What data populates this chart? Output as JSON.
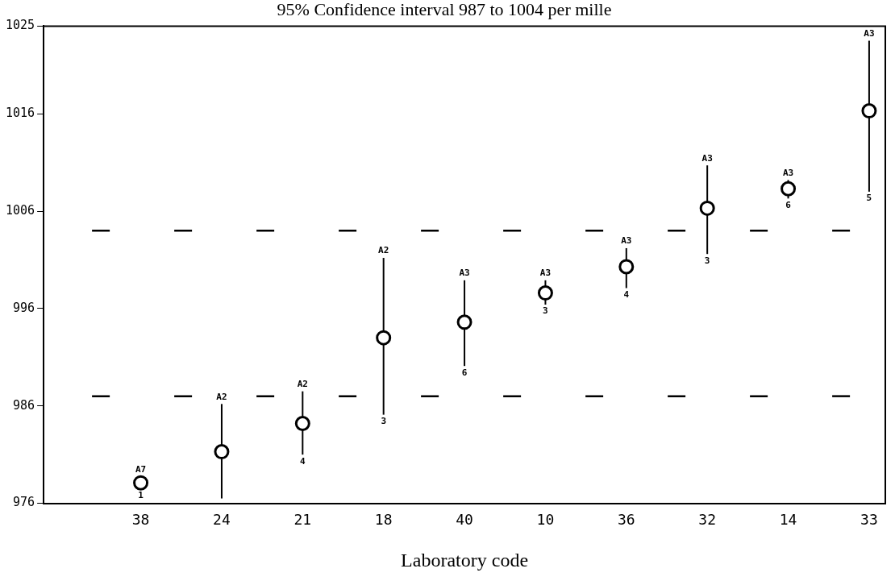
{
  "chart_data": {
    "type": "scatter",
    "title": "95% Confidence interval 987 to 1004 per mille",
    "xlabel": "Laboratory code",
    "categories": [
      "38",
      "24",
      "21",
      "18",
      "40",
      "10",
      "36",
      "32",
      "14",
      "33"
    ],
    "series": [
      {
        "color": "#000000",
        "values": [
          978.1,
          981.3,
          984.2,
          993.0,
          994.6,
          997.6,
          1000.3,
          1006.3,
          1008.3,
          1016.3
        ],
        "errors": [
          [
            977.5,
            978.7
          ],
          [
            976.5,
            986.2
          ],
          [
            981.0,
            987.5
          ],
          [
            985.1,
            1001.2
          ],
          [
            990.1,
            998.9
          ],
          [
            996.4,
            998.9
          ],
          [
            998.1,
            1002.2
          ],
          [
            1001.6,
            1010.7
          ],
          [
            1007.3,
            1009.2
          ],
          [
            1008.0,
            1023.5
          ]
        ]
      }
    ],
    "ylim": [
      976,
      1025
    ],
    "yticks": [
      976,
      986,
      996,
      1006,
      1016,
      1025
    ],
    "ref_lines": [
      {
        "axis": "y",
        "value": 987,
        "label": null,
        "color": "#000000",
        "line_style": "dashed"
      },
      {
        "axis": "y",
        "value": 1004,
        "label": null,
        "color": "#000000",
        "line_style": "dashed"
      }
    ],
    "annotations": [
      {
        "text": "A7",
        "x": "38",
        "y": 978.7
      },
      {
        "text": "1",
        "x": "38",
        "y": 977.5
      },
      {
        "text": "A2",
        "x": "24",
        "y": 986.2
      },
      {
        "text": "A2",
        "x": "21",
        "y": 987.5
      },
      {
        "text": "4",
        "x": "21",
        "y": 981.0
      },
      {
        "text": "A2",
        "x": "18",
        "y": 1001.2
      },
      {
        "text": "3",
        "x": "18",
        "y": 985.1
      },
      {
        "text": "A3",
        "x": "40",
        "y": 998.9
      },
      {
        "text": "6",
        "x": "40",
        "y": 990.1
      },
      {
        "text": "A3",
        "x": "10",
        "y": 998.9
      },
      {
        "text": "3",
        "x": "10",
        "y": 996.4
      },
      {
        "text": "A3",
        "x": "36",
        "y": 1002.2
      },
      {
        "text": "4",
        "x": "36",
        "y": 998.1
      },
      {
        "text": "A3",
        "x": "32",
        "y": 1010.7
      },
      {
        "text": "3",
        "x": "32",
        "y": 1001.6
      },
      {
        "text": "A3",
        "x": "14",
        "y": 1009.2
      },
      {
        "text": "6",
        "x": "14",
        "y": 1007.3
      },
      {
        "text": "A3",
        "x": "33",
        "y": 1023.5
      },
      {
        "text": "5",
        "x": "33",
        "y": 1008.0
      }
    ],
    "marker": "circle",
    "grid": false,
    "legend": false
  }
}
